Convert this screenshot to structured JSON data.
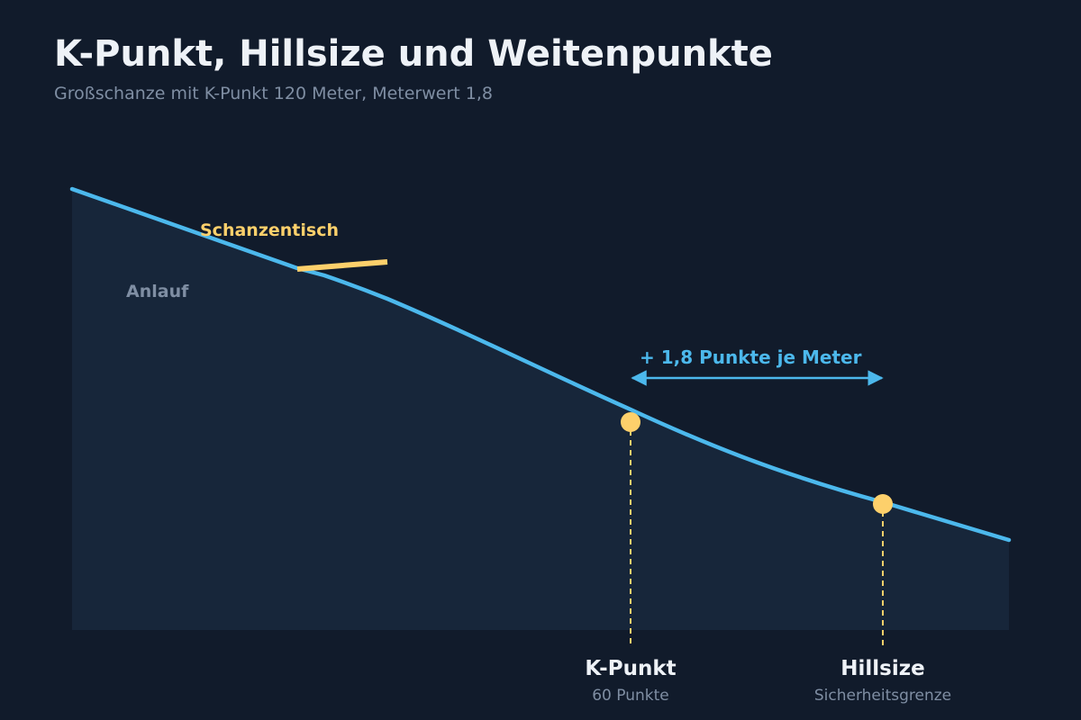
{
  "title": "K-Punkt, Hillsize und Weitenpunkte",
  "subtitle": "Großschanze mit K-Punkt 120 Meter, Meterwert 1,8",
  "labels": {
    "table": "Schanzentisch",
    "inrun": "Anlauf",
    "per_meter": "+ 1,8 Punkte je Meter"
  },
  "markers": {
    "k_point": {
      "label": "K-Punkt",
      "sublabel": "60 Punkte"
    },
    "hill_size": {
      "label": "Hillsize",
      "sublabel": "Sicherheitsgrenze"
    }
  },
  "colors": {
    "background": "#111b2b",
    "slope_fill": "#17263a",
    "slope_line": "#4cb8ec",
    "accent": "#fdd06b",
    "text_primary": "#eef2f7",
    "text_muted": "#7f8ea3"
  }
}
